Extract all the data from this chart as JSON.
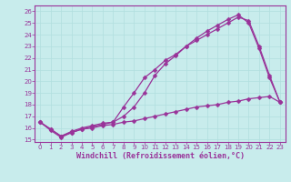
{
  "xlabel": "Windchill (Refroidissement éolien,°C)",
  "background_color": "#c8ecec",
  "line_color": "#993399",
  "grid_color": "#b0dede",
  "x_ticks": [
    0,
    1,
    2,
    3,
    4,
    5,
    6,
    7,
    8,
    9,
    10,
    11,
    12,
    13,
    14,
    15,
    16,
    17,
    18,
    19,
    20,
    21,
    22,
    23
  ],
  "yticks": [
    15,
    16,
    17,
    18,
    19,
    20,
    21,
    22,
    23,
    24,
    25,
    26
  ],
  "ylim": [
    14.8,
    26.5
  ],
  "xlim": [
    -0.5,
    23.5
  ],
  "line1_x": [
    0,
    1,
    2,
    3,
    4,
    5,
    6,
    7,
    8,
    9,
    10,
    11,
    12,
    13,
    14,
    15,
    16,
    17,
    18,
    19,
    20,
    21,
    22,
    23
  ],
  "line1_y": [
    16.5,
    15.8,
    15.2,
    15.6,
    15.9,
    16.1,
    16.3,
    16.5,
    17.8,
    19.0,
    20.3,
    21.0,
    21.8,
    22.3,
    23.0,
    23.7,
    24.3,
    24.8,
    25.3,
    25.7,
    25.0,
    22.8,
    20.3,
    18.2
  ],
  "line2_x": [
    0,
    1,
    2,
    3,
    4,
    5,
    6,
    7,
    8,
    9,
    10,
    11,
    12,
    13,
    14,
    15,
    16,
    17,
    18,
    19,
    20,
    21,
    22,
    23
  ],
  "line2_y": [
    16.5,
    15.9,
    15.3,
    15.7,
    16.0,
    16.2,
    16.4,
    16.5,
    17.0,
    17.8,
    19.0,
    20.5,
    21.5,
    22.2,
    23.0,
    23.5,
    24.0,
    24.5,
    25.0,
    25.5,
    25.2,
    23.0,
    20.5,
    18.2
  ],
  "line3_x": [
    0,
    1,
    2,
    3,
    4,
    5,
    6,
    7,
    8,
    9,
    10,
    11,
    12,
    13,
    14,
    15,
    16,
    17,
    18,
    19,
    20,
    21,
    22,
    23
  ],
  "line3_y": [
    16.5,
    15.9,
    15.3,
    15.6,
    15.9,
    16.0,
    16.2,
    16.3,
    16.5,
    16.6,
    16.8,
    17.0,
    17.2,
    17.4,
    17.6,
    17.8,
    17.9,
    18.0,
    18.2,
    18.3,
    18.5,
    18.6,
    18.7,
    18.2
  ],
  "marker": "D",
  "marker_size": 2.5,
  "linewidth": 0.9,
  "tick_fontsize": 5,
  "label_fontsize": 6,
  "spine_color": "#993399"
}
